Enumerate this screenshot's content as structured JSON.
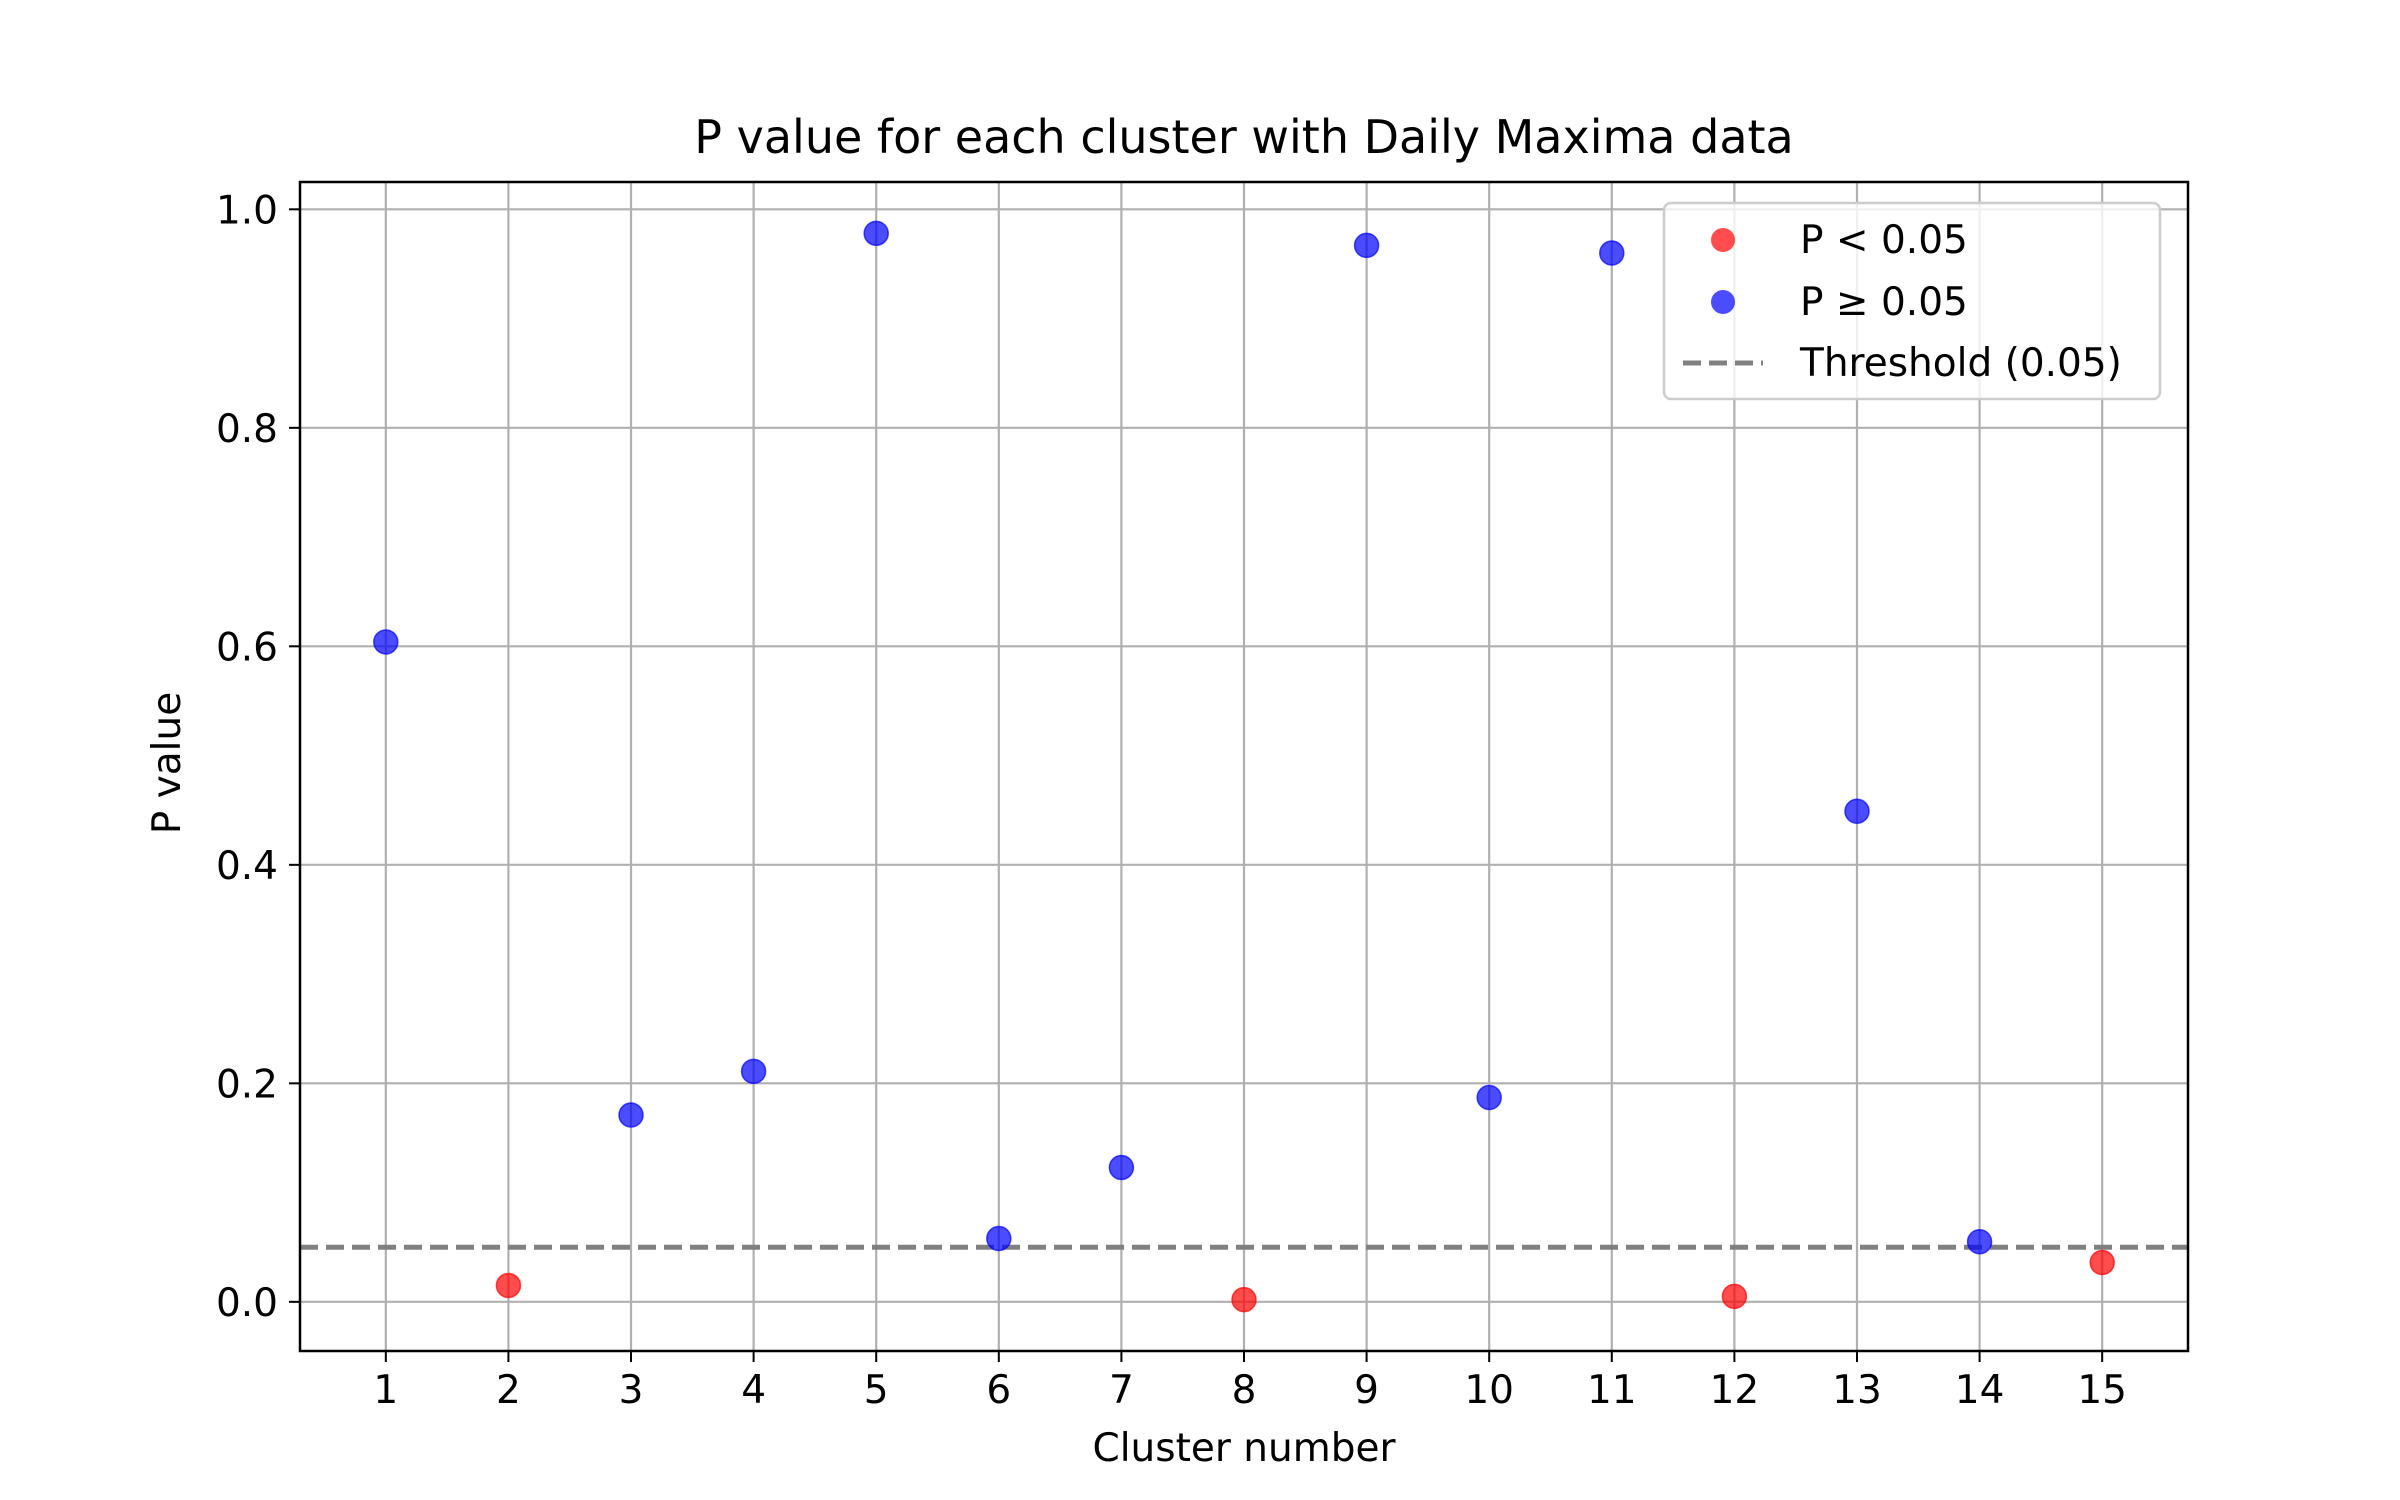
{
  "chart_data": {
    "type": "scatter",
    "title": "P value for each cluster with Daily Maxima data",
    "xlabel": "Cluster number",
    "ylabel": "P value",
    "xlim": [
      0.3,
      15.7
    ],
    "ylim": [
      -0.045,
      1.025
    ],
    "x_ticks": [
      "1",
      "2",
      "3",
      "4",
      "5",
      "6",
      "7",
      "8",
      "9",
      "10",
      "11",
      "12",
      "13",
      "14",
      "15"
    ],
    "y_ticks": [
      "0.0",
      "0.2",
      "0.4",
      "0.6",
      "0.8",
      "1.0"
    ],
    "grid": true,
    "legend_position": "top-right",
    "threshold": {
      "value": 0.05,
      "label": "Threshold (0.05)",
      "color": "#808080"
    },
    "series": [
      {
        "name": "P < 0.05",
        "color": "#ff0000",
        "points": [
          {
            "x": 2,
            "y": 0.015
          },
          {
            "x": 8,
            "y": 0.002
          },
          {
            "x": 12,
            "y": 0.005
          },
          {
            "x": 15,
            "y": 0.036
          }
        ]
      },
      {
        "name": "P ≥ 0.05",
        "color": "#0000ff",
        "points": [
          {
            "x": 1,
            "y": 0.604
          },
          {
            "x": 3,
            "y": 0.171
          },
          {
            "x": 4,
            "y": 0.211
          },
          {
            "x": 5,
            "y": 0.978
          },
          {
            "x": 6,
            "y": 0.058
          },
          {
            "x": 7,
            "y": 0.123
          },
          {
            "x": 9,
            "y": 0.967
          },
          {
            "x": 10,
            "y": 0.187
          },
          {
            "x": 11,
            "y": 0.96
          },
          {
            "x": 13,
            "y": 0.449
          },
          {
            "x": 14,
            "y": 0.055
          }
        ]
      }
    ]
  }
}
